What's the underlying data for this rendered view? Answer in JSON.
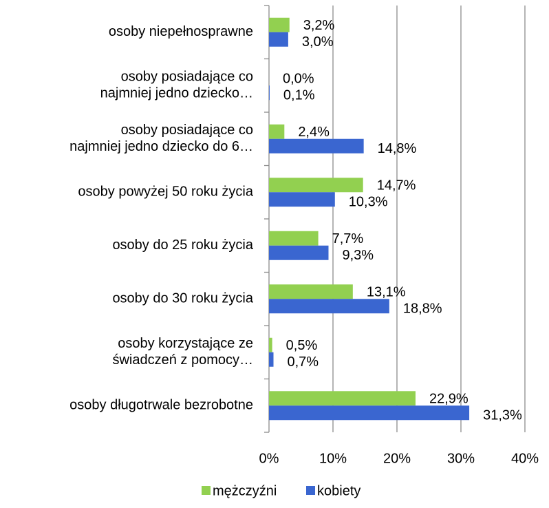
{
  "chart_data": {
    "type": "barh",
    "categories": [
      "osoby niepełnosprawne",
      "osoby posiadające co\nnajmniej jedno dziecko…",
      "osoby posiadające co\nnajmniej jedno dziecko do 6…",
      "osoby powyżej 50 roku życia",
      "osoby do 25 roku życia",
      "osoby do 30 roku życia",
      "osoby korzystające ze\nświadczeń z pomocy…",
      "osoby długotrwale bezrobotne"
    ],
    "series": [
      {
        "name": "mężczyźni",
        "color": "#92d050",
        "values": [
          3.2,
          0.0,
          2.4,
          14.7,
          7.7,
          13.1,
          0.5,
          22.9
        ],
        "value_labels": [
          "3,2%",
          "0,0%",
          "2,4%",
          "14,7%",
          "7,7%",
          "13,1%",
          "0,5%",
          "22,9%"
        ]
      },
      {
        "name": "kobiety",
        "color": "#3a66d0",
        "values": [
          3.0,
          0.1,
          14.8,
          10.3,
          9.3,
          18.8,
          0.7,
          31.3
        ],
        "value_labels": [
          "3,0%",
          "0,1%",
          "14,8%",
          "10,3%",
          "9,3%",
          "18,8%",
          "0,7%",
          "31,3%"
        ]
      }
    ],
    "xlim": [
      0,
      40
    ],
    "xticks": [
      {
        "value": 0,
        "label": "0%"
      },
      {
        "value": 10,
        "label": "10%"
      },
      {
        "value": 20,
        "label": "20%"
      },
      {
        "value": 30,
        "label": "30%"
      },
      {
        "value": 40,
        "label": "40%"
      }
    ],
    "grid": true,
    "legend": "bottom"
  }
}
